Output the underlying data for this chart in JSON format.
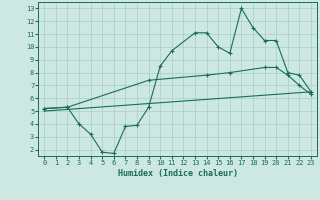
{
  "xlabel": "Humidex (Indice chaleur)",
  "bg_color": "#cce8e0",
  "grid_color": "#aacccc",
  "line_color": "#1a6b5a",
  "xlim": [
    -0.5,
    23.5
  ],
  "ylim": [
    1.5,
    13.5
  ],
  "xticks": [
    0,
    1,
    2,
    3,
    4,
    5,
    6,
    7,
    8,
    9,
    10,
    11,
    12,
    13,
    14,
    15,
    16,
    17,
    18,
    19,
    20,
    21,
    22,
    23
  ],
  "yticks": [
    2,
    3,
    4,
    5,
    6,
    7,
    8,
    9,
    10,
    11,
    12,
    13
  ],
  "series1_x": [
    0,
    2,
    3,
    4,
    5,
    6,
    7,
    8,
    9,
    10,
    11,
    13,
    14,
    15,
    16,
    17,
    18,
    19,
    20,
    21,
    22,
    23
  ],
  "series1_y": [
    5.2,
    5.3,
    4.0,
    3.2,
    1.8,
    1.7,
    3.8,
    3.9,
    5.3,
    8.5,
    9.7,
    11.1,
    11.1,
    10.0,
    9.5,
    13.0,
    11.5,
    10.5,
    10.5,
    8.0,
    7.8,
    6.5
  ],
  "series2_x": [
    0,
    2,
    9,
    14,
    16,
    19,
    20,
    21,
    22,
    23
  ],
  "series2_y": [
    5.2,
    5.3,
    7.4,
    7.8,
    8.0,
    8.4,
    8.4,
    7.8,
    7.0,
    6.3
  ],
  "series3_x": [
    0,
    23
  ],
  "series3_y": [
    5.0,
    6.5
  ]
}
